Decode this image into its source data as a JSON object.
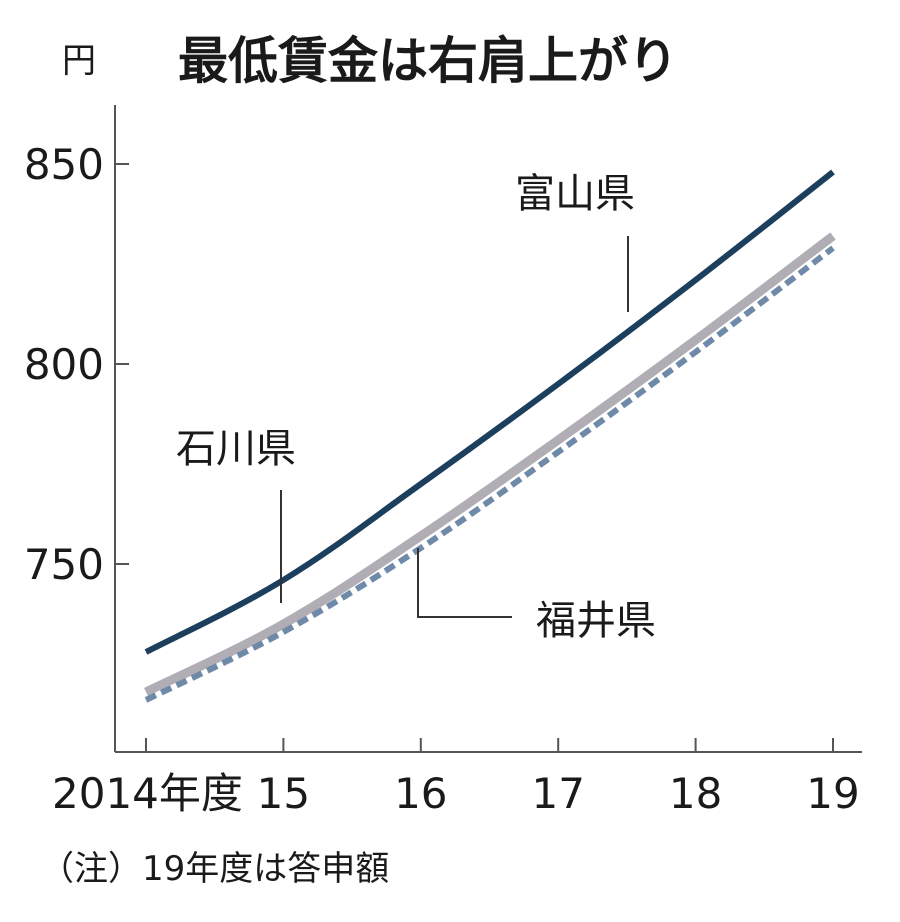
{
  "chart_data": {
    "type": "line",
    "title": "最低賃金は右肩上がり",
    "unit": "円",
    "x": [
      2014,
      2015,
      2016,
      2017,
      2018,
      2019
    ],
    "x_tick_labels": [
      "2014年度",
      "15",
      "16",
      "17",
      "18",
      "19"
    ],
    "y_ticks": [
      750,
      800,
      850
    ],
    "ylim": [
      702,
      862
    ],
    "note": "（注）19年度は答申額",
    "series": [
      {
        "name": "富山県",
        "values": [
          728,
          746,
          770,
          795,
          821,
          848
        ],
        "color": "#1d3f5e",
        "style": "solid"
      },
      {
        "name": "石川県",
        "values": [
          718,
          735,
          757,
          781,
          806,
          832
        ],
        "color": "#b0aeb4",
        "style": "solid"
      },
      {
        "name": "福井県",
        "values": [
          716,
          733,
          754,
          778,
          803,
          829
        ],
        "color": "#6f8aa8",
        "style": "dashed"
      }
    ],
    "legend": "inline-labels"
  }
}
